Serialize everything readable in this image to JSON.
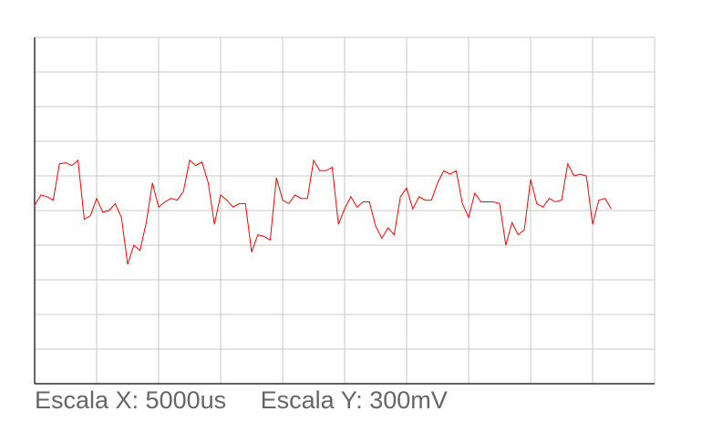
{
  "scales": {
    "x_label": "Escala X: 5000us",
    "y_label": "Escala Y: 300mV"
  },
  "colors": {
    "trace": "#ff0000",
    "grid": "#c8c8c8",
    "axis": "#000000"
  },
  "chart_data": {
    "type": "line",
    "grid": true,
    "x_divisions": 10,
    "y_divisions": 10,
    "x_unit": "div",
    "y_unit": "div",
    "xlim": [
      0,
      10
    ],
    "ylim": [
      -5,
      5
    ],
    "series": [
      {
        "color": "#ff0000",
        "x": [
          0.0,
          0.1,
          0.2,
          0.3,
          0.4,
          0.5,
          0.6,
          0.7,
          0.8,
          0.9,
          1.0,
          1.1,
          1.2,
          1.3,
          1.4,
          1.5,
          1.6,
          1.7,
          1.8,
          1.9,
          2.0,
          2.1,
          2.2,
          2.3,
          2.4,
          2.5,
          2.6,
          2.7,
          2.8,
          2.9,
          3.0,
          3.1,
          3.2,
          3.3,
          3.4,
          3.5,
          3.6,
          3.7,
          3.8,
          3.9,
          4.0,
          4.1,
          4.2,
          4.3,
          4.4,
          4.5,
          4.6,
          4.7,
          4.8,
          4.9,
          5.0,
          5.1,
          5.2,
          5.3,
          5.4,
          5.5,
          5.6,
          5.7,
          5.8,
          5.9,
          6.0,
          6.1,
          6.2,
          6.3,
          6.4,
          6.5,
          6.6,
          6.7,
          6.8,
          6.9,
          7.0,
          7.1,
          7.2,
          7.3,
          7.4,
          7.5,
          7.6,
          7.7,
          7.8,
          7.9,
          8.0,
          8.1,
          8.2,
          8.3,
          8.4,
          8.5,
          8.6,
          8.7,
          8.8,
          8.9,
          9.0,
          9.1,
          9.2,
          9.3
        ],
        "y": [
          0.15,
          0.45,
          0.4,
          0.3,
          1.35,
          1.38,
          1.3,
          1.45,
          -0.25,
          -0.15,
          0.35,
          -0.05,
          0.0,
          0.2,
          -0.2,
          -1.55,
          -1.0,
          -1.15,
          -0.35,
          0.8,
          0.1,
          0.25,
          0.35,
          0.3,
          0.55,
          1.45,
          1.3,
          1.4,
          0.8,
          -0.4,
          0.45,
          0.3,
          0.1,
          0.2,
          0.2,
          -1.2,
          -0.7,
          -0.75,
          -0.85,
          0.95,
          0.3,
          0.2,
          0.45,
          0.35,
          0.35,
          1.45,
          1.15,
          1.15,
          1.25,
          -0.4,
          0.05,
          0.4,
          0.1,
          0.25,
          0.25,
          -0.45,
          -0.8,
          -0.5,
          -0.7,
          0.4,
          0.65,
          0.05,
          0.4,
          0.3,
          0.3,
          0.8,
          1.15,
          1.05,
          1.15,
          0.2,
          -0.2,
          0.5,
          0.25,
          0.25,
          0.25,
          0.2,
          -1.0,
          -0.35,
          -0.7,
          -0.55,
          0.9,
          0.2,
          0.1,
          0.35,
          0.25,
          0.3,
          1.35,
          1.0,
          1.05,
          1.0,
          -0.4,
          0.3,
          0.35,
          0.05
        ]
      }
    ]
  }
}
